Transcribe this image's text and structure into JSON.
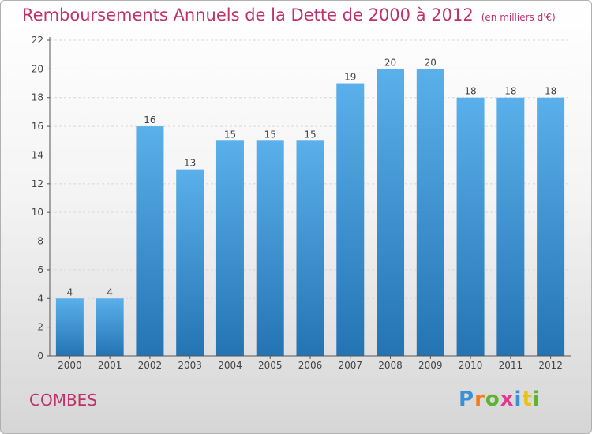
{
  "title": "Remboursements Annuels de la Dette de 2000 à 2012",
  "unit_note": "(en milliers d'€)",
  "commune": "COMBES",
  "logo": {
    "text": "Proxiti",
    "letter_colors": [
      "#3a8fd6",
      "#f07d1a",
      "#5cb531",
      "#e03a8c",
      "#3a8fd6",
      "#e8c21c",
      "#5cb531"
    ]
  },
  "colors": {
    "title": "#c0306a",
    "bar_light": "#5ab0ea",
    "bar_dark": "#2474b4",
    "axis": "#555555"
  },
  "chart_data": {
    "type": "bar",
    "categories": [
      "2000",
      "2001",
      "2002",
      "2003",
      "2004",
      "2005",
      "2006",
      "2007",
      "2008",
      "2009",
      "2010",
      "2011",
      "2012"
    ],
    "values": [
      4,
      4,
      16,
      13,
      15,
      15,
      15,
      19,
      20,
      20,
      18,
      18,
      18
    ],
    "title": "Remboursements Annuels de la Dette de 2000 à 2012",
    "xlabel": "",
    "ylabel": "",
    "ylim": [
      0,
      22
    ],
    "yticks": [
      0,
      2,
      4,
      6,
      8,
      10,
      12,
      14,
      16,
      18,
      20,
      22
    ],
    "grid": true,
    "legend": "none"
  }
}
